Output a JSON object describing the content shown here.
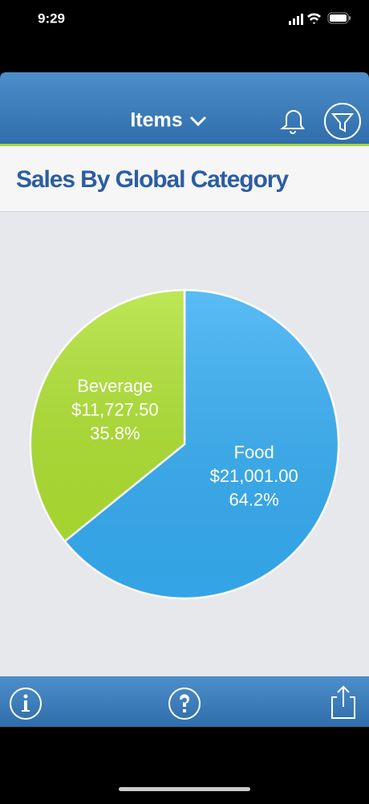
{
  "status_bar": {
    "time": "9:29"
  },
  "nav": {
    "title": "Items"
  },
  "chart_data": {
    "type": "pie",
    "title": "Sales By Global Category",
    "categories": [
      "Food",
      "Beverage"
    ],
    "values": [
      21001.0,
      11727.5
    ],
    "value_labels": [
      "$21,001.00",
      "$11,727.50"
    ],
    "percent_labels": [
      "64.2%",
      "35.8%"
    ],
    "colors": [
      "#36aef4",
      "#b0e233"
    ]
  }
}
